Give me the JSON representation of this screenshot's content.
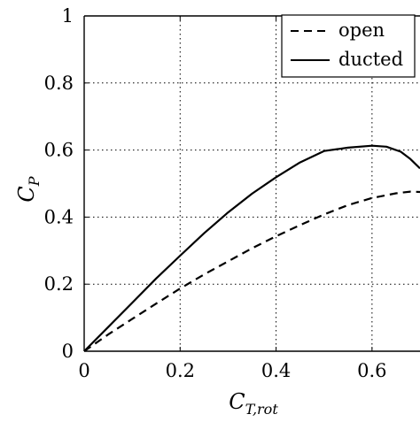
{
  "chart_data": {
    "type": "line",
    "xlabel": "C",
    "xlabel_sub": "T,rot",
    "ylabel": "C",
    "ylabel_sub": "P",
    "xlim": [
      0,
      0.7
    ],
    "ylim": [
      0,
      1
    ],
    "xticks": [
      0,
      0.2,
      0.4,
      0.6
    ],
    "xtick_labels": [
      "0",
      "0.2",
      "0.4",
      "0.6"
    ],
    "yticks": [
      0,
      0.2,
      0.4,
      0.6,
      0.8,
      1
    ],
    "ytick_labels": [
      "0",
      "0.2",
      "0.4",
      "0.6",
      "0.8",
      "1"
    ],
    "grid": true,
    "legend_position": "top-right",
    "series": [
      {
        "name": "open",
        "style": "dashed",
        "color": "#000000",
        "x": [
          0,
          0.05,
          0.1,
          0.15,
          0.2,
          0.25,
          0.3,
          0.35,
          0.4,
          0.45,
          0.5,
          0.55,
          0.6,
          0.65,
          0.68,
          0.7
        ],
        "y": [
          0,
          0.05,
          0.096,
          0.142,
          0.187,
          0.229,
          0.268,
          0.307,
          0.343,
          0.376,
          0.408,
          0.436,
          0.457,
          0.471,
          0.476,
          0.475
        ]
      },
      {
        "name": "ducted",
        "style": "solid",
        "color": "#000000",
        "x": [
          0,
          0.05,
          0.1,
          0.15,
          0.2,
          0.25,
          0.3,
          0.35,
          0.4,
          0.45,
          0.5,
          0.55,
          0.6,
          0.63,
          0.66,
          0.68,
          0.7
        ],
        "y": [
          0,
          0.072,
          0.144,
          0.217,
          0.285,
          0.352,
          0.414,
          0.47,
          0.519,
          0.563,
          0.597,
          0.607,
          0.613,
          0.61,
          0.595,
          0.573,
          0.545
        ]
      }
    ]
  }
}
